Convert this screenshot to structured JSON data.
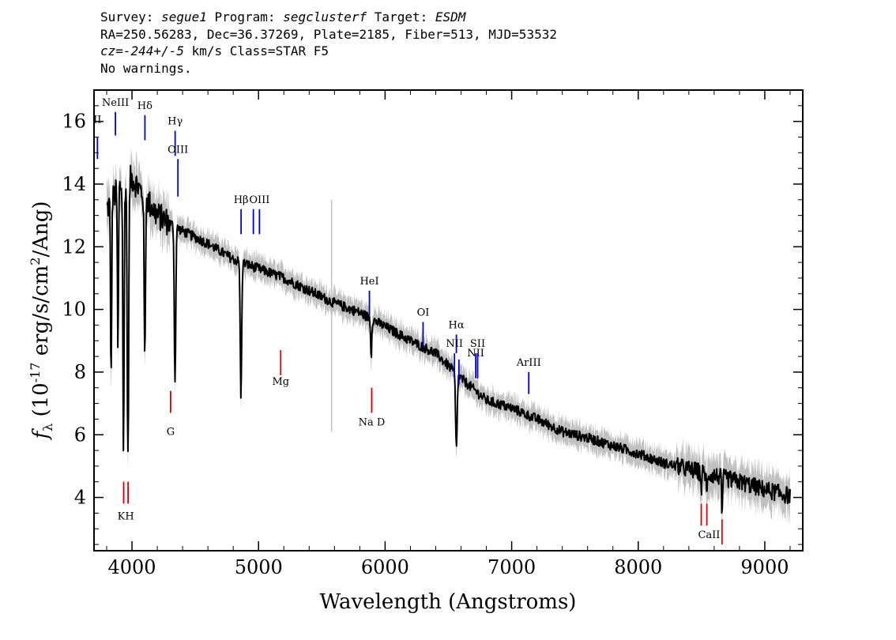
{
  "header": {
    "line1": [
      {
        "text": "Survey: ",
        "italic": false
      },
      {
        "text": "segue1",
        "italic": true
      },
      {
        "text": " Program: ",
        "italic": false
      },
      {
        "text": "segclusterf",
        "italic": true
      },
      {
        "text": " Target: ",
        "italic": false
      },
      {
        "text": "ESDM",
        "italic": true
      }
    ],
    "line2": "RA=250.56283, Dec=36.37269, Plate=2185, Fiber=513, MJD=53532",
    "line3": [
      {
        "text": "cz=-244+/-5",
        "italic": true
      },
      {
        "text": " km/s Class=STAR F5",
        "italic": false
      }
    ],
    "line4": "No warnings."
  },
  "chart_data": {
    "type": "line",
    "xlabel": "Wavelength (Angstroms)",
    "ylabel_main": "f",
    "ylabel_sub": "λ",
    "ylabel_rest": "(10",
    "ylabel_exp": "-17",
    "ylabel_units": "erg/s/cm",
    "ylabel_units_exp": "2",
    "ylabel_tail": "/Ang)",
    "xlim": [
      3700,
      9300
    ],
    "ylim": [
      2.3,
      17.0
    ],
    "xticks": [
      4000,
      5000,
      6000,
      7000,
      8000,
      9000
    ],
    "yticks": [
      4,
      6,
      8,
      10,
      12,
      14,
      16
    ],
    "continuum": [
      [
        3800,
        13.2
      ],
      [
        3900,
        13.9
      ],
      [
        4000,
        14.2
      ],
      [
        4100,
        13.6
      ],
      [
        4200,
        13.0
      ],
      [
        4400,
        12.5
      ],
      [
        4600,
        12.1
      ],
      [
        4800,
        11.6
      ],
      [
        5000,
        11.3
      ],
      [
        5200,
        11.0
      ],
      [
        5400,
        10.6
      ],
      [
        5600,
        10.2
      ],
      [
        5800,
        9.9
      ],
      [
        6000,
        9.45
      ],
      [
        6200,
        9.0
      ],
      [
        6400,
        8.6
      ],
      [
        6600,
        7.8
      ],
      [
        6800,
        7.1
      ],
      [
        7000,
        6.85
      ],
      [
        7200,
        6.5
      ],
      [
        7400,
        6.1
      ],
      [
        7600,
        5.9
      ],
      [
        7800,
        5.65
      ],
      [
        8000,
        5.4
      ],
      [
        8200,
        5.1
      ],
      [
        8400,
        4.9
      ],
      [
        8600,
        4.7
      ],
      [
        8800,
        4.5
      ],
      [
        9000,
        4.25
      ],
      [
        9200,
        4.05
      ]
    ],
    "absorption": [
      {
        "x": 3835,
        "depth": 5.8,
        "width": 6
      },
      {
        "x": 3889,
        "depth": 5.2,
        "width": 6
      },
      {
        "x": 3933,
        "depth": 8.6,
        "width": 7
      },
      {
        "x": 3968,
        "depth": 9.0,
        "width": 8
      },
      {
        "x": 4101,
        "depth": 5.3,
        "width": 7
      },
      {
        "x": 4340,
        "depth": 5.0,
        "width": 8
      },
      {
        "x": 4861,
        "depth": 4.3,
        "width": 8
      },
      {
        "x": 5890,
        "depth": 1.2,
        "width": 6
      },
      {
        "x": 6563,
        "depth": 2.4,
        "width": 9
      },
      {
        "x": 8498,
        "depth": 0.6,
        "width": 5
      },
      {
        "x": 8542,
        "depth": 0.8,
        "width": 5
      },
      {
        "x": 8662,
        "depth": 1.4,
        "width": 5
      }
    ],
    "emission_lines": [
      {
        "label": "II",
        "x": 3727,
        "y1": 14.8,
        "y2": 15.5,
        "label_y": 15.95
      },
      {
        "label": "NeIII",
        "x": 3869,
        "y1": 15.55,
        "y2": 16.3,
        "label_y": 16.5
      },
      {
        "label": "Hδ",
        "x": 4102,
        "y1": 15.4,
        "y2": 16.2,
        "label_y": 16.4
      },
      {
        "label": "Hγ",
        "x": 4341,
        "y1": 14.9,
        "y2": 15.7,
        "label_y": 15.9
      },
      {
        "label": "OIII",
        "x": 4363,
        "y1": 13.6,
        "y2": 14.8,
        "label_y": 15.0
      },
      {
        "label": "Hβ",
        "x": 4862,
        "y1": 12.4,
        "y2": 13.2,
        "label_y": 13.4
      },
      {
        "label": "",
        "x": 4959,
        "y1": 12.4,
        "y2": 13.2,
        "label_y": 13.4
      },
      {
        "label": "OIII",
        "x": 5007,
        "y1": 12.4,
        "y2": 13.2,
        "label_y": 13.4
      },
      {
        "label": "HeI",
        "x": 5876,
        "y1": 9.8,
        "y2": 10.6,
        "label_y": 10.8
      },
      {
        "label": "OI",
        "x": 6300,
        "y1": 8.8,
        "y2": 9.6,
        "label_y": 9.8
      },
      {
        "label": "NII",
        "x": 6548,
        "y1": 7.8,
        "y2": 8.6,
        "label_y": 8.8
      },
      {
        "label": "Hα",
        "x": 6563,
        "y1": 8.6,
        "y2": 9.2,
        "label_y": 9.4
      },
      {
        "label": "",
        "x": 6583,
        "y1": 7.6,
        "y2": 8.4,
        "label_y": 8.6
      },
      {
        "label": "NII",
        "x": 6716,
        "y1": 7.8,
        "y2": 8.6,
        "label_y": 8.5
      },
      {
        "label": "SII",
        "x": 6731,
        "y1": 7.8,
        "y2": 8.6,
        "label_y": 8.8
      },
      {
        "label": "ArIII",
        "x": 7135,
        "y1": 7.3,
        "y2": 8.0,
        "label_y": 8.2
      }
    ],
    "absorption_markers": [
      {
        "label": "",
        "x": 3934,
        "y1": 3.8,
        "y2": 4.5,
        "label_y": 3.3
      },
      {
        "label": "",
        "x": 3969,
        "y1": 3.8,
        "y2": 4.5,
        "label_y": 3.3
      },
      {
        "label": "KH",
        "x": 3951,
        "y1": 3.8,
        "y2": 3.8,
        "label_y": 3.3
      },
      {
        "label": "G",
        "x": 4305,
        "y1": 6.7,
        "y2": 7.4,
        "label_y": 6.0
      },
      {
        "label": "Mg",
        "x": 5175,
        "y1": 7.9,
        "y2": 8.7,
        "label_y": 7.6
      },
      {
        "label": "Na D",
        "x": 5894,
        "y1": 6.7,
        "y2": 7.5,
        "label_y": 6.3
      },
      {
        "label": "",
        "x": 8498,
        "y1": 3.1,
        "y2": 3.8,
        "label_y": 2.7
      },
      {
        "label": "",
        "x": 8542,
        "y1": 3.1,
        "y2": 3.8,
        "label_y": 2.7
      },
      {
        "label": "",
        "x": 8662,
        "y1": 2.5,
        "y2": 3.3,
        "label_y": 2.7
      },
      {
        "label": "CaII",
        "x": 8560,
        "y1": 3.1,
        "y2": 3.1,
        "label_y": 2.7
      }
    ],
    "colors": {
      "spectrum": "#000000",
      "error": "#c0c0c0",
      "emission_marker": "#0000cc",
      "absorption_marker": "#dd0000"
    }
  }
}
